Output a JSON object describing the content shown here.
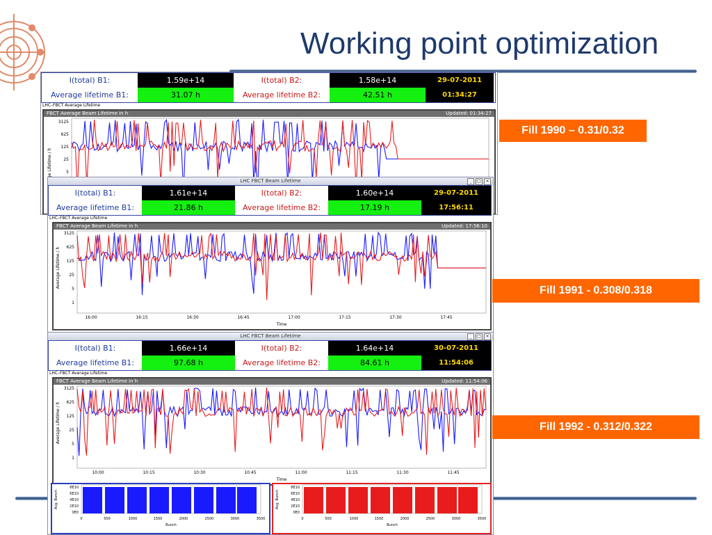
{
  "slide": {
    "title": "Working point optimization"
  },
  "labels": {
    "ib1": "I(total) B1:",
    "ib2": "I(total) B2:",
    "lt1": "Average lifetime B1:",
    "lt2": "Average lifetime B2:",
    "app": "LHC–FBCT Average Lifetime",
    "window_title": "LHC FBCT Beam Lifetime",
    "plot_title": "FBCT Average Beam Lifetime in h",
    "ylabel": "Average Lifetime / h",
    "xlabel": "Time",
    "bunch": "Bunch",
    "avg_bunch": "Avg. Bunch"
  },
  "snapshots": [
    {
      "fill": "Fill 1990 – 0.31/0.32",
      "i_b1": "1.59e+14",
      "i_b2": "1.58e+14",
      "lt_b1": "31.07 h",
      "lt_b2": "42.51 h",
      "date": "29-07-2011",
      "time": "01:34:27",
      "updated": "Updated: 01:34:27"
    },
    {
      "fill": "Fill 1991 - 0.308/0.318",
      "i_b1": "1.61e+14",
      "i_b2": "1.60e+14",
      "lt_b1": "21.86 h",
      "lt_b2": "17.19 h",
      "date": "29-07-2011",
      "time": "17:56:11",
      "updated": "Updated: 17:56:10",
      "x_ticks": [
        "16:00",
        "16:15",
        "16:30",
        "16:45",
        "17:00",
        "17:15",
        "17:30",
        "17:45"
      ]
    },
    {
      "fill": "Fill 1992 - 0.312/0.322",
      "i_b1": "1.66e+14",
      "i_b2": "1.64e+14",
      "lt_b1": "97.68 h",
      "lt_b2": "84.61 h",
      "date": "30-07-2011",
      "time": "11:54:06",
      "updated": "Updated: 11:54:06",
      "x_ticks": [
        "10:00",
        "10:15",
        "10:30",
        "10:45",
        "11:00",
        "11:15",
        "11:30",
        "11:45"
      ]
    }
  ],
  "y_ticks": [
    "3125",
    "625",
    "125",
    "25",
    "5",
    "1"
  ],
  "hist": {
    "y_ticks": [
      "8E10",
      "6E10",
      "4E10",
      "2E10",
      "0E0"
    ],
    "x_ticks": [
      "0",
      "500",
      "1000",
      "1500",
      "2000",
      "2500",
      "3000",
      "3500"
    ]
  },
  "colors": {
    "b1": "#1a1aff",
    "b2": "#e81c1c",
    "fill_box": "#ff6600",
    "title": "#1f3a6b"
  }
}
